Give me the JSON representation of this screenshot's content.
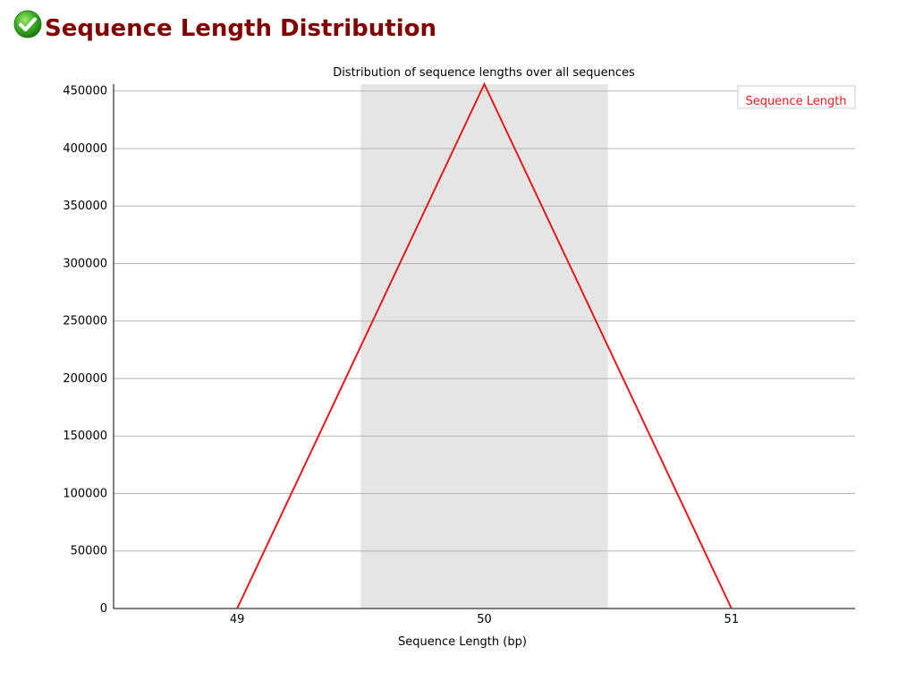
{
  "module": {
    "status": "pass",
    "status_icon": "check-circle-icon",
    "title": "Sequence Length Distribution"
  },
  "colors": {
    "title": "#800000",
    "series": "#e41a1c",
    "band": "#e5e5e5",
    "grid": "#b4b4b4",
    "axis": "#000000"
  },
  "chart_data": {
    "type": "line",
    "title": "Distribution of sequence lengths over all sequences",
    "xlabel": "Sequence Length (bp)",
    "ylabel": "",
    "x": [
      49,
      50,
      51
    ],
    "xticks": [
      "49",
      "50",
      "51"
    ],
    "series": [
      {
        "name": "Sequence Length",
        "values": [
          0,
          456000,
          0
        ]
      }
    ],
    "ylim": [
      0,
      456000
    ],
    "yticks": [
      0,
      50000,
      100000,
      150000,
      200000,
      250000,
      300000,
      350000,
      400000,
      450000
    ],
    "highlight_band_category": "50",
    "grid": true,
    "legend_position": "top-right"
  }
}
